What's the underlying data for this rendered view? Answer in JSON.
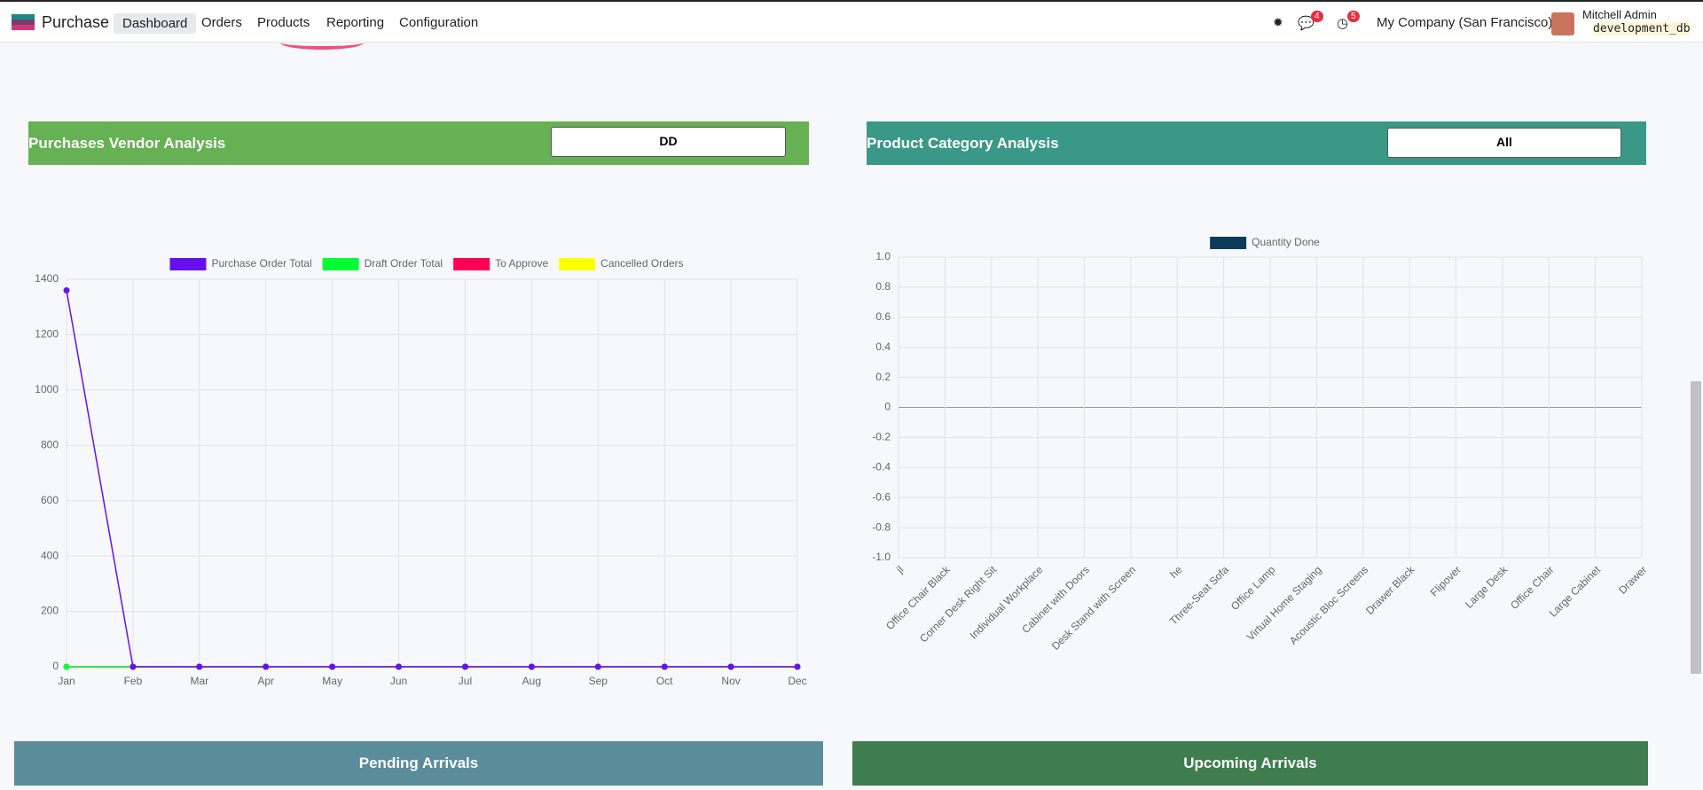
{
  "navbar": {
    "app": "Purchase",
    "menu": [
      "Dashboard",
      "Orders",
      "Products",
      "Reporting",
      "Configuration"
    ],
    "messages_badge": "4",
    "activities_badge": "5",
    "company": "My Company (San Francisco)",
    "user": "Mitchell Admin",
    "database": "development_db"
  },
  "panels": {
    "vendor": {
      "title": "Purchases Vendor Analysis",
      "filter": "DD"
    },
    "category": {
      "title": "Product Category Analysis",
      "filter": "All"
    },
    "pending": "Pending Arrivals",
    "upcoming": "Upcoming Arrivals"
  },
  "chart_data": [
    {
      "type": "line",
      "categories": [
        "Jan",
        "Feb",
        "Mar",
        "Apr",
        "May",
        "Jun",
        "Jul",
        "Aug",
        "Sep",
        "Oct",
        "Nov",
        "Dec"
      ],
      "series": [
        {
          "name": "Purchase Order Total",
          "color": "#6610f2",
          "values": [
            1360,
            0,
            0,
            0,
            0,
            0,
            0,
            0,
            0,
            0,
            0,
            0
          ]
        },
        {
          "name": "Draft Order Total",
          "color": "#00ff33",
          "values": [
            0,
            0,
            0,
            0,
            0,
            0,
            0,
            0,
            0,
            0,
            0,
            0
          ]
        },
        {
          "name": "To Approve",
          "color": "#ff0055",
          "values": [
            0,
            0,
            0,
            0,
            0,
            0,
            0,
            0,
            0,
            0,
            0,
            0
          ]
        },
        {
          "name": "Cancelled Orders",
          "color": "#ffff00",
          "values": [
            0,
            0,
            0,
            0,
            0,
            0,
            0,
            0,
            0,
            0,
            0,
            0
          ]
        }
      ],
      "ylim": [
        0,
        1400
      ],
      "yticks": [
        0,
        200,
        400,
        600,
        800,
        1000,
        1200,
        1400
      ],
      "grid": true
    },
    {
      "type": "bar",
      "categories": [
        "jl",
        "Office Chair Black",
        "Corner Desk Right Sit",
        "Individual Workplace",
        "Cabinet with Doors",
        "Desk Stand with Screen",
        "he",
        "Three-Seat Sofa",
        "Office Lamp",
        "Virtual Home Staging",
        "Acoustic Bloc Screens",
        "Drawer Black",
        "Flipover",
        "Large Desk",
        "Office Chair",
        "Large Cabinet",
        "Drawer"
      ],
      "series": [
        {
          "name": "Quantity Done",
          "color": "#0b3d5b",
          "values": [
            0,
            0,
            0,
            0,
            0,
            0,
            0,
            0,
            0,
            0,
            0,
            0,
            0,
            0,
            0,
            0,
            0
          ]
        }
      ],
      "ylim": [
        -1,
        1
      ],
      "yticks": [
        {
          "value": -1,
          "label": "-1.0"
        },
        -0.8,
        -0.6,
        -0.4,
        -0.2,
        0,
        0.2,
        0.4,
        0.6,
        0.8,
        {
          "value": 1,
          "label": "1.0"
        }
      ],
      "grid": true
    }
  ]
}
